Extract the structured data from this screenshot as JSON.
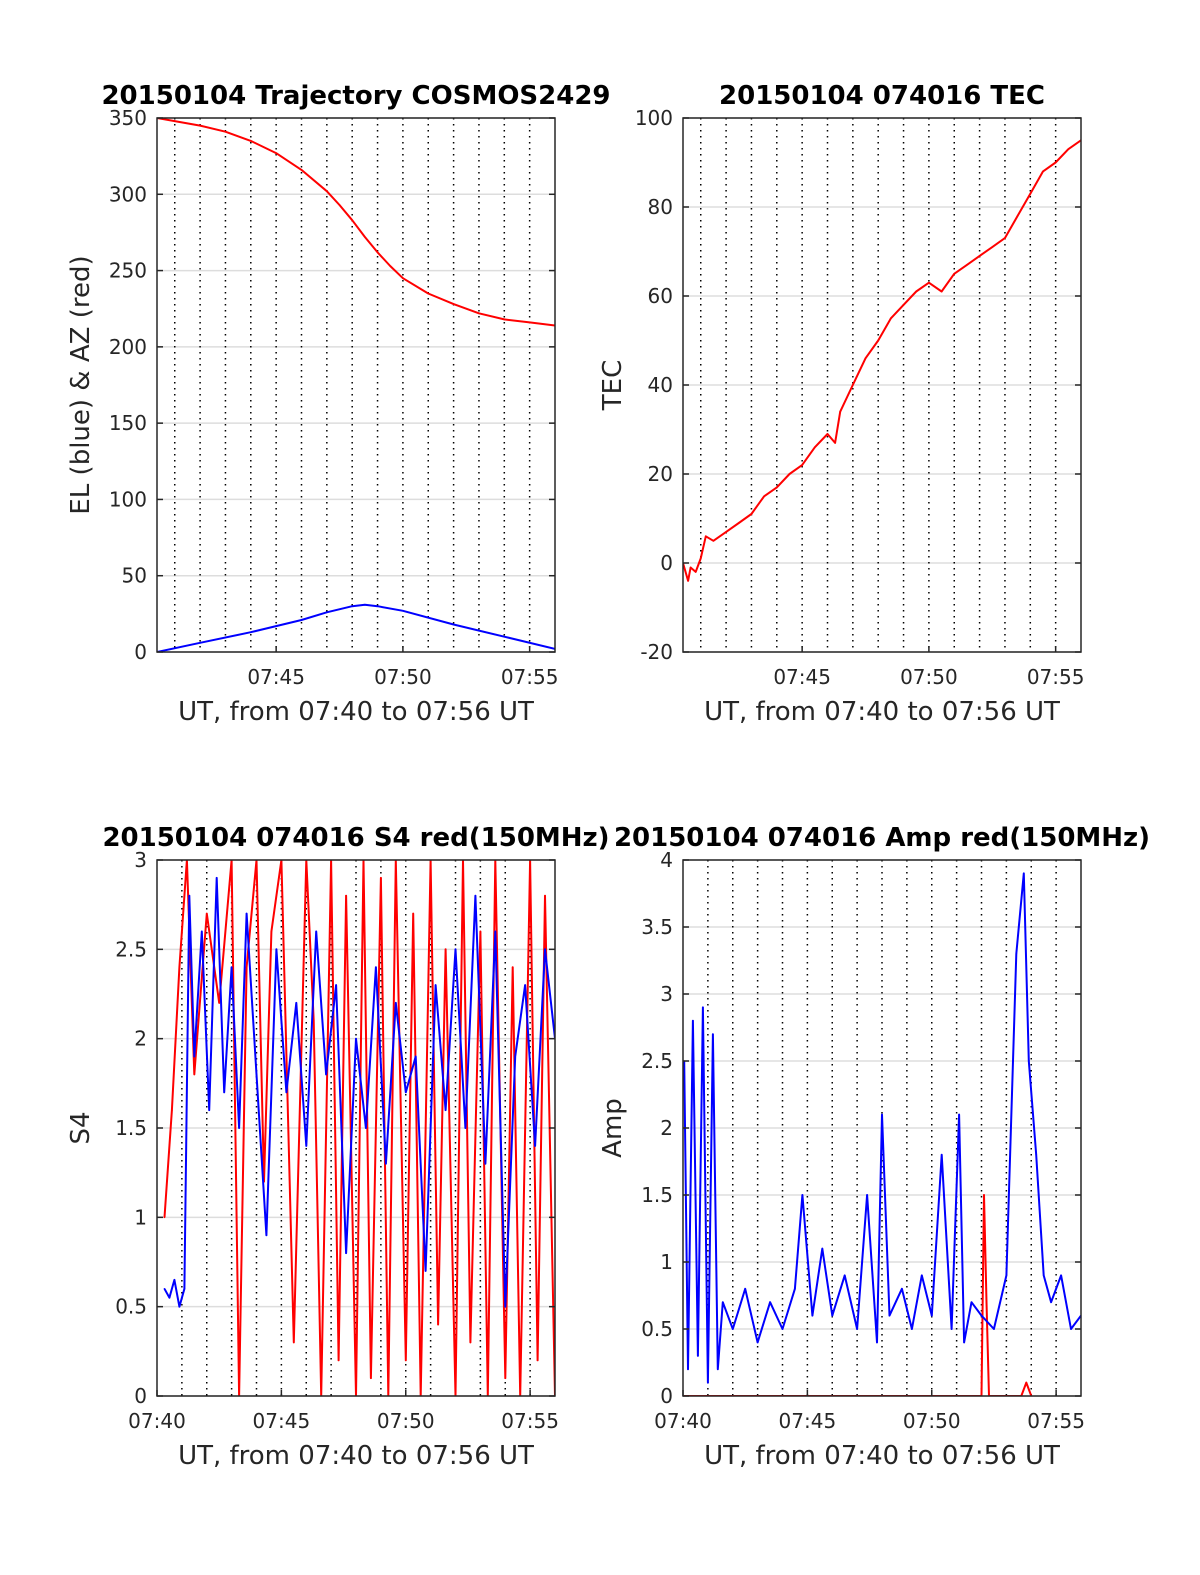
{
  "chart_data": [
    {
      "type": "line",
      "title": "20150104 Trajectory COSMOS2429",
      "xlabel": "UT, from 07:40 to 07:56 UT",
      "ylabel": "EL (blue) & AZ (red)",
      "xlim_minutes": [
        40.3,
        56
      ],
      "ylim": [
        0,
        350
      ],
      "yticks": [
        0,
        50,
        100,
        150,
        200,
        250,
        300,
        350
      ],
      "xticks": [
        45,
        50,
        55
      ],
      "xtick_labels": [
        "07:45",
        "07:50",
        "07:55"
      ],
      "grid": true,
      "series": [
        {
          "color": "#ff0000",
          "x": [
            40.3,
            41,
            42,
            43,
            44,
            45,
            46,
            47,
            47.5,
            48,
            48.5,
            49,
            49.5,
            50,
            51,
            52,
            53,
            54,
            55,
            56
          ],
          "y": [
            350,
            348,
            345,
            341,
            335,
            327,
            316,
            302,
            293,
            283,
            272,
            262,
            253,
            245,
            235,
            228,
            222,
            218,
            216,
            214
          ]
        },
        {
          "color": "#0000ff",
          "x": [
            40.3,
            42,
            44,
            46,
            47,
            48,
            48.5,
            49,
            50,
            52,
            54,
            56
          ],
          "y": [
            0,
            6,
            13,
            21,
            26,
            30,
            31,
            30,
            27,
            18,
            10,
            2
          ]
        }
      ]
    },
    {
      "type": "line",
      "title": "20150104 074016 TEC",
      "xlabel": "UT, from 07:40 to 07:56 UT",
      "ylabel": "TEC",
      "xlim_minutes": [
        40.3,
        56
      ],
      "ylim": [
        -20,
        100
      ],
      "yticks": [
        -20,
        0,
        20,
        40,
        60,
        80,
        100
      ],
      "xticks": [
        45,
        50,
        55
      ],
      "xtick_labels": [
        "07:45",
        "07:50",
        "07:55"
      ],
      "grid": true,
      "series": [
        {
          "color": "#ff0000",
          "x": [
            40.3,
            40.5,
            40.6,
            40.8,
            41,
            41.2,
            41.5,
            42,
            42.5,
            43,
            43.5,
            44,
            44.5,
            45,
            45.5,
            46,
            46.3,
            46.5,
            47,
            47.5,
            48,
            48.5,
            49,
            49.5,
            50,
            50.5,
            51,
            51.5,
            52,
            52.5,
            53,
            53.5,
            54,
            54.5,
            55,
            55.5,
            56
          ],
          "y": [
            0,
            -4,
            -1,
            -2,
            1,
            6,
            5,
            7,
            9,
            11,
            15,
            17,
            20,
            22,
            26,
            29,
            27,
            34,
            40,
            46,
            50,
            55,
            58,
            61,
            63,
            61,
            65,
            67,
            69,
            71,
            73,
            78,
            83,
            88,
            90,
            93,
            95
          ]
        }
      ]
    },
    {
      "type": "line",
      "title": "20150104 074016 S4 red(150MHz)",
      "xlabel": "UT, from 07:40 to 07:56 UT",
      "ylabel": "S4",
      "xlim_minutes": [
        40,
        56
      ],
      "ylim": [
        0,
        3
      ],
      "yticks": [
        0,
        0.5,
        1,
        1.5,
        2,
        2.5,
        3
      ],
      "xticks": [
        40,
        45,
        50,
        55
      ],
      "xtick_labels": [
        "07:40",
        "07:45",
        "07:50",
        "07:55"
      ],
      "grid": true,
      "series": [
        {
          "color": "#ff0000",
          "x": [
            40.3,
            40.6,
            40.9,
            41.2,
            41.5,
            42,
            42.5,
            43,
            43.3,
            43.6,
            44,
            44.3,
            44.6,
            45,
            45.5,
            46,
            46.3,
            46.6,
            47,
            47.3,
            47.6,
            48,
            48.3,
            48.6,
            49,
            49.3,
            49.6,
            50,
            50.3,
            50.6,
            51,
            51.3,
            51.6,
            52,
            52.3,
            52.6,
            53,
            53.3,
            53.6,
            54,
            54.3,
            54.6,
            55,
            55.3,
            55.6,
            56
          ],
          "y": [
            1,
            1.6,
            2.4,
            3,
            1.8,
            2.7,
            2.2,
            3,
            0,
            2.4,
            3,
            1.2,
            2.6,
            3,
            0.3,
            3,
            2.1,
            0,
            3,
            0.2,
            2.8,
            0,
            3,
            0.1,
            2.9,
            0,
            3,
            0.2,
            2.7,
            0,
            3,
            0.4,
            2.5,
            0,
            3,
            0.3,
            2.6,
            0,
            3,
            0.1,
            2.4,
            0,
            3,
            0.2,
            2.8,
            0
          ]
        },
        {
          "color": "#0000ff",
          "x": [
            40.3,
            40.5,
            40.7,
            40.9,
            41.1,
            41.3,
            41.5,
            41.8,
            42.1,
            42.4,
            42.7,
            43,
            43.3,
            43.6,
            44,
            44.4,
            44.8,
            45.2,
            45.6,
            46,
            46.4,
            46.8,
            47.2,
            47.6,
            48,
            48.4,
            48.8,
            49.2,
            49.6,
            50,
            50.4,
            50.8,
            51.2,
            51.6,
            52,
            52.4,
            52.8,
            53.2,
            53.6,
            54,
            54.4,
            54.8,
            55.2,
            55.6,
            56
          ],
          "y": [
            0.6,
            0.55,
            0.65,
            0.5,
            0.6,
            2.8,
            1.9,
            2.6,
            1.6,
            2.9,
            1.7,
            2.4,
            1.5,
            2.7,
            1.8,
            0.9,
            2.5,
            1.7,
            2.2,
            1.4,
            2.6,
            1.8,
            2.3,
            0.8,
            2.0,
            1.5,
            2.4,
            1.3,
            2.2,
            1.7,
            1.9,
            0.7,
            2.3,
            1.6,
            2.5,
            1.5,
            2.8,
            1.3,
            2.6,
            0.5,
            1.9,
            2.3,
            1.4,
            2.5,
            2.0
          ]
        }
      ]
    },
    {
      "type": "line",
      "title": "20150104 074016 Amp red(150MHz)",
      "xlabel": "UT, from 07:40 to 07:56 UT",
      "ylabel": "Amp",
      "xlim_minutes": [
        40,
        56
      ],
      "ylim": [
        0,
        4
      ],
      "yticks": [
        0,
        0.5,
        1,
        1.5,
        2,
        2.5,
        3,
        3.5,
        4
      ],
      "xticks": [
        40,
        45,
        50,
        55
      ],
      "xtick_labels": [
        "07:40",
        "07:45",
        "07:50",
        "07:55"
      ],
      "grid": true,
      "series": [
        {
          "color": "#ff0000",
          "x": [
            40,
            52,
            52.1,
            52.2,
            52.3,
            53.6,
            53.8,
            54
          ],
          "y": [
            0,
            0,
            1.5,
            0.7,
            0,
            0,
            0.1,
            0
          ]
        },
        {
          "color": "#0000ff",
          "x": [
            40.05,
            40.2,
            40.4,
            40.6,
            40.8,
            41,
            41.2,
            41.4,
            41.6,
            42,
            42.5,
            43,
            43.5,
            44,
            44.5,
            44.8,
            45.2,
            45.6,
            46,
            46.5,
            47,
            47.4,
            47.8,
            48,
            48.3,
            48.8,
            49.2,
            49.6,
            50,
            50.4,
            50.8,
            51.1,
            51.3,
            51.6,
            52,
            52.5,
            53,
            53.4,
            53.7,
            53.9,
            54.2,
            54.5,
            54.8,
            55.2,
            55.6,
            56
          ],
          "y": [
            2.5,
            0.2,
            2.8,
            0.3,
            2.9,
            0.1,
            2.7,
            0.2,
            0.7,
            0.5,
            0.8,
            0.4,
            0.7,
            0.5,
            0.8,
            1.5,
            0.6,
            1.1,
            0.6,
            0.9,
            0.5,
            1.5,
            0.4,
            2.1,
            0.6,
            0.8,
            0.5,
            0.9,
            0.6,
            1.8,
            0.5,
            2.1,
            0.4,
            0.7,
            0.6,
            0.5,
            0.9,
            3.3,
            3.9,
            2.5,
            1.8,
            0.9,
            0.7,
            0.9,
            0.5,
            0.6
          ]
        }
      ]
    }
  ]
}
